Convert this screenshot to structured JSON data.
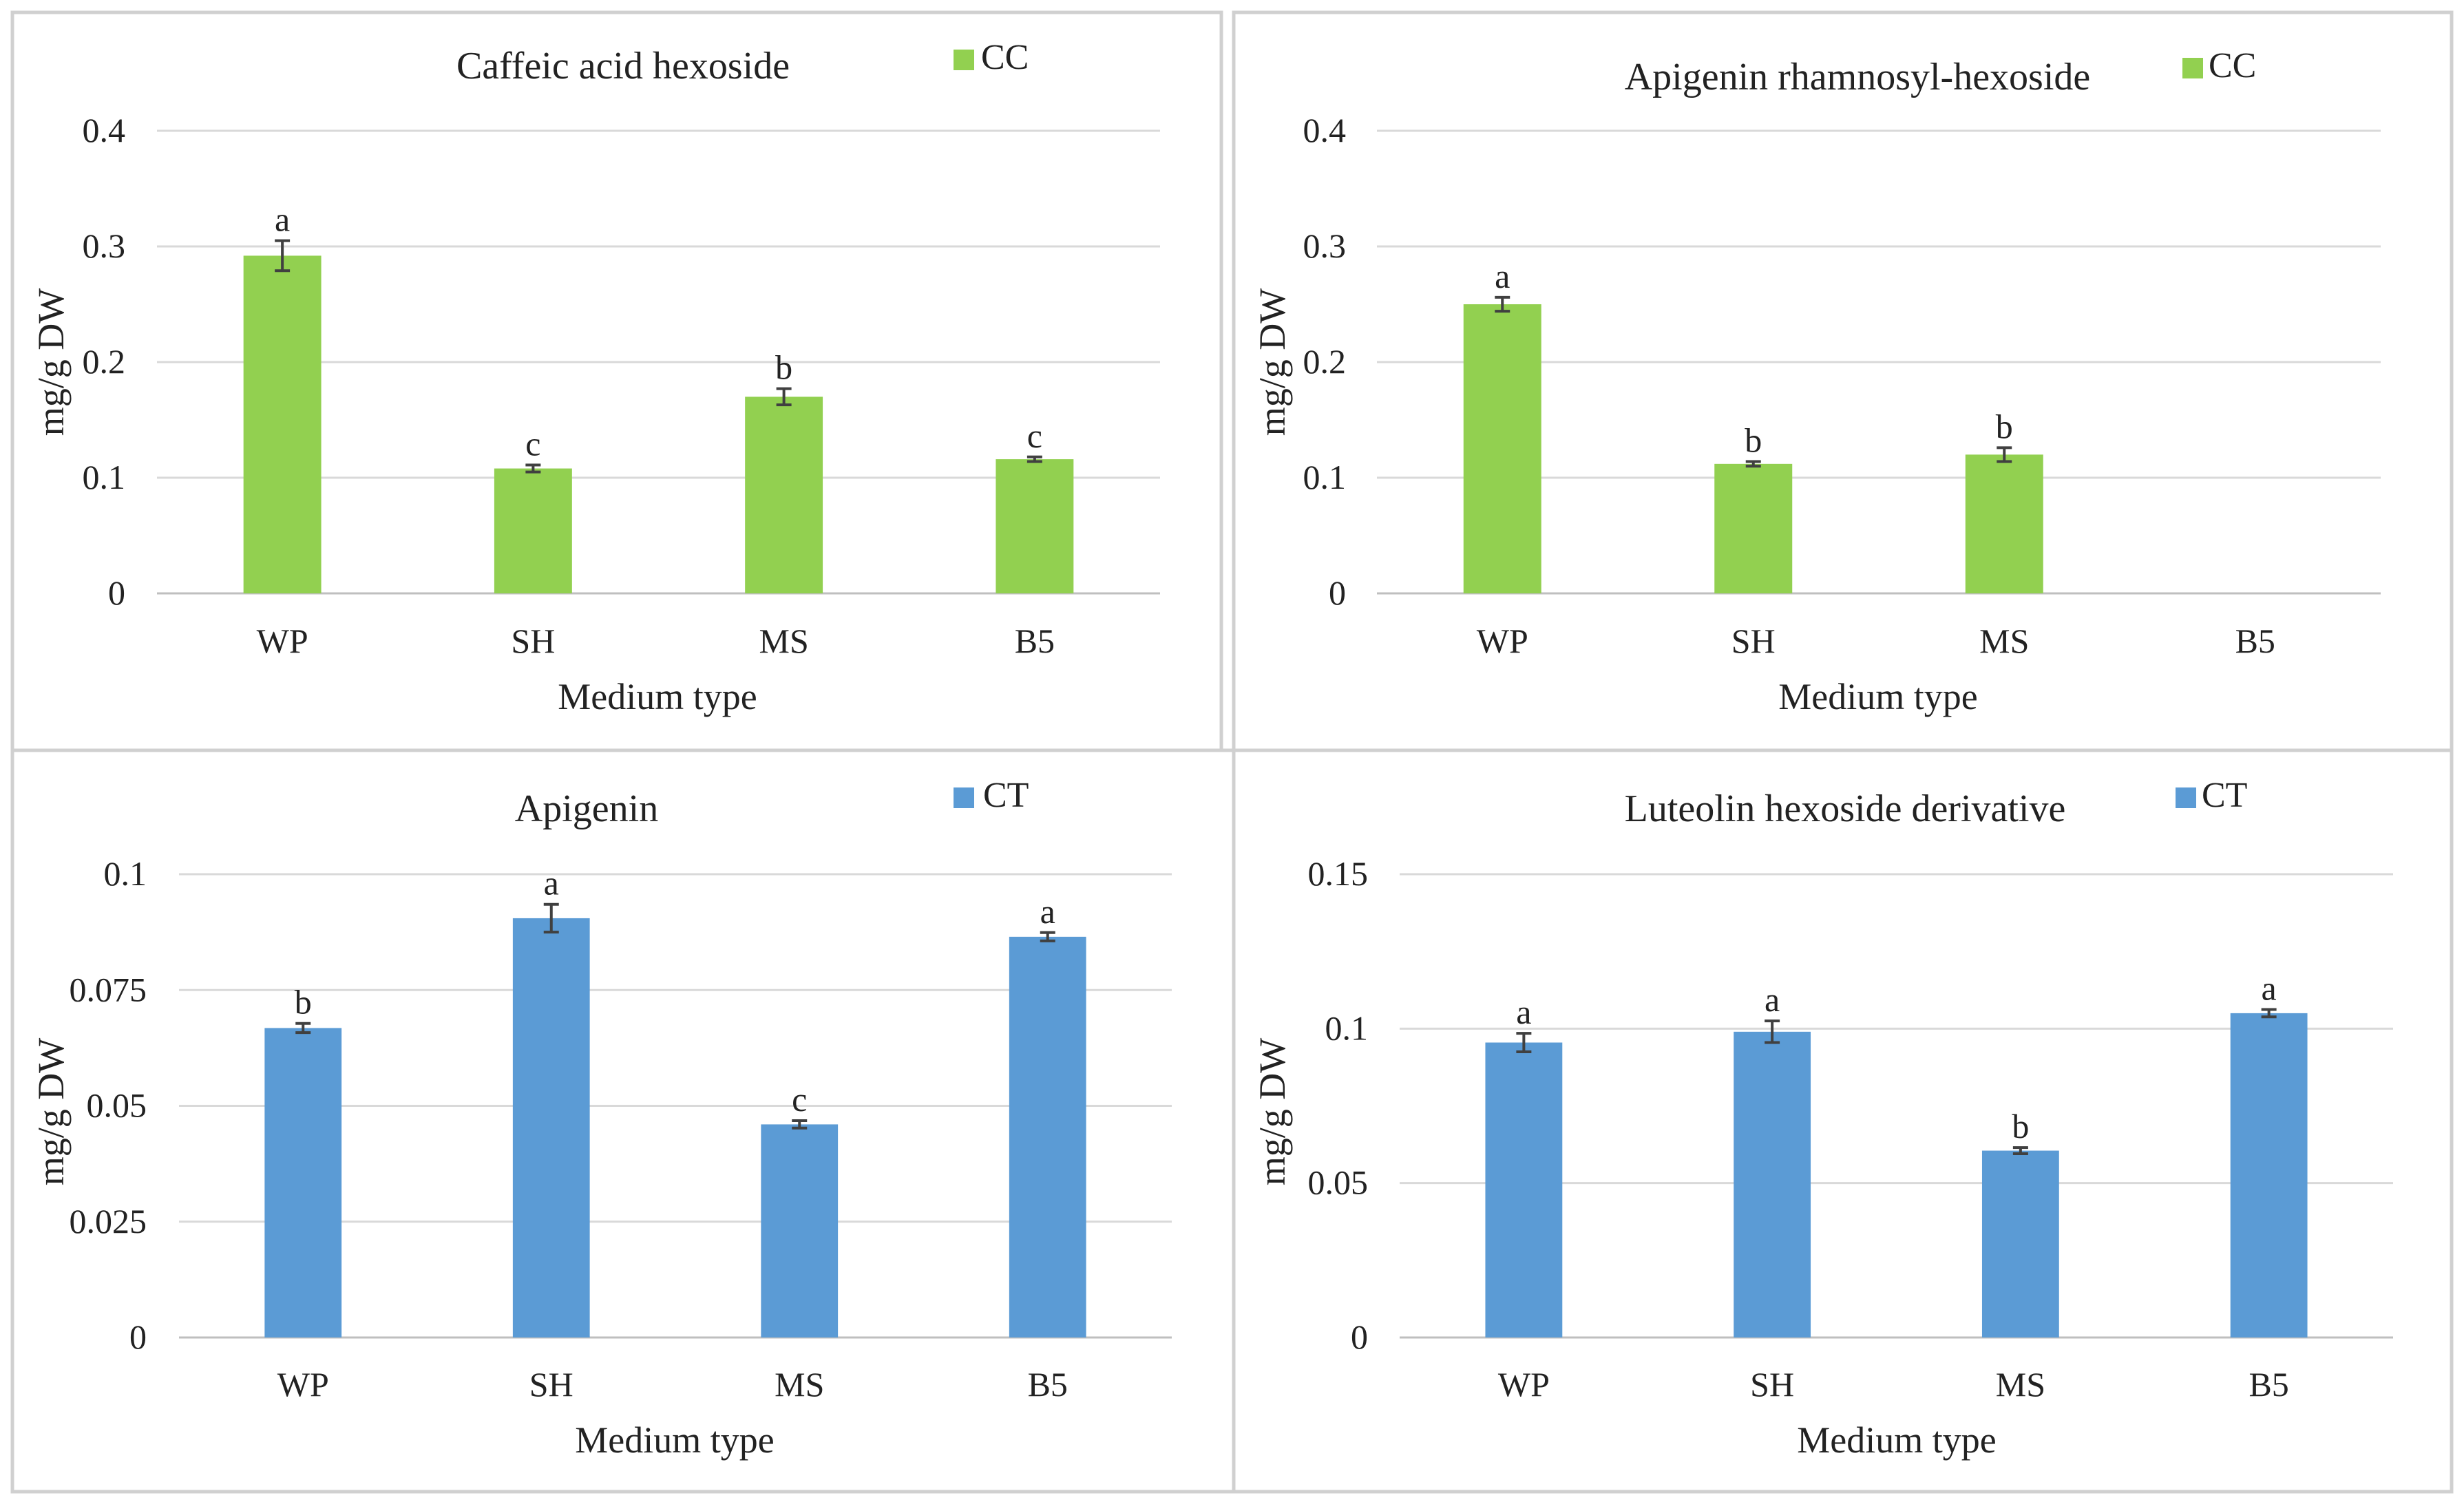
{
  "colors": {
    "cc_bar": "#92D050",
    "ct_bar": "#5B9BD5",
    "grid": "#D9D9D9",
    "axis": "#BFBFBF",
    "panel_border": "#D0D0D0",
    "error_bar": "#404040"
  },
  "chart_data": [
    {
      "type": "bar",
      "title": "Caffeic acid hexoside",
      "legend": "CC",
      "legend_color_key": "cc_bar",
      "xlabel": "Medium type",
      "ylabel": "mg/g DW",
      "categories": [
        "WP",
        "SH",
        "MS",
        "B5"
      ],
      "values": [
        0.292,
        0.108,
        0.17,
        0.116
      ],
      "errors": [
        0.013,
        0.003,
        0.007,
        0.002
      ],
      "letters": [
        "a",
        "c",
        "b",
        "c"
      ],
      "ylim": [
        0,
        0.4
      ],
      "yticks": [
        0,
        0.1,
        0.2,
        0.3,
        0.4
      ],
      "ytick_labels": [
        "0",
        "0.1",
        "0.2",
        "0.3",
        "0.4"
      ]
    },
    {
      "type": "bar",
      "title": "Apigenin rhamnosyl-hexoside",
      "legend": "CC",
      "legend_color_key": "cc_bar",
      "xlabel": "Medium type",
      "ylabel": "mg/g DW",
      "categories": [
        "WP",
        "SH",
        "MS",
        "B5"
      ],
      "values": [
        0.25,
        0.112,
        0.12,
        null
      ],
      "errors": [
        0.006,
        0.002,
        0.006,
        null
      ],
      "letters": [
        "a",
        "b",
        "b",
        ""
      ],
      "ylim": [
        0,
        0.4
      ],
      "yticks": [
        0,
        0.1,
        0.2,
        0.3,
        0.4
      ],
      "ytick_labels": [
        "0",
        "0.1",
        "0.2",
        "0.3",
        "0.4"
      ]
    },
    {
      "type": "bar",
      "title": "Apigenin",
      "legend": "CT",
      "legend_color_key": "ct_bar",
      "xlabel": "Medium type",
      "ylabel": "mg/g DW",
      "categories": [
        "WP",
        "SH",
        "MS",
        "B5"
      ],
      "values": [
        0.0668,
        0.0905,
        0.046,
        0.0865
      ],
      "errors": [
        0.001,
        0.003,
        0.0008,
        0.0009
      ],
      "letters": [
        "b",
        "a",
        "c",
        "a"
      ],
      "ylim": [
        0,
        0.1
      ],
      "yticks": [
        0,
        0.025,
        0.05,
        0.075,
        0.1
      ],
      "ytick_labels": [
        "0",
        "0.025",
        "0.05",
        "0.075",
        "0.1"
      ]
    },
    {
      "type": "bar",
      "title": "Luteolin hexoside derivative",
      "legend": "CT",
      "legend_color_key": "ct_bar",
      "xlabel": "Medium type",
      "ylabel": "mg/g DW",
      "categories": [
        "WP",
        "SH",
        "MS",
        "B5"
      ],
      "values": [
        0.0955,
        0.099,
        0.0605,
        0.105
      ],
      "errors": [
        0.003,
        0.0035,
        0.001,
        0.0012
      ],
      "letters": [
        "a",
        "a",
        "b",
        "a"
      ],
      "ylim": [
        0,
        0.15
      ],
      "yticks": [
        0,
        0.05,
        0.1,
        0.15
      ],
      "ytick_labels": [
        "0",
        "0.05",
        "0.1",
        "0.15"
      ]
    }
  ]
}
